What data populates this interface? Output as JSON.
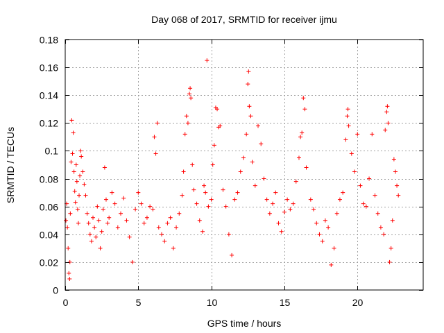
{
  "chart_data": {
    "type": "scatter",
    "title": "Day 068 of 2017, SRMTID for receiver ijmu",
    "xlabel": "GPS time / hours",
    "ylabel": "SRMTID / TECUs",
    "xlim": [
      0,
      24.5
    ],
    "ylim": [
      0,
      0.18
    ],
    "grid": true,
    "marker": "+",
    "xticks": [
      0,
      5,
      10,
      15,
      20
    ],
    "xtick_labels": [
      "0",
      "5",
      "10",
      "15",
      "20"
    ],
    "yticks": [
      0,
      0.02,
      0.04,
      0.06,
      0.08,
      0.1,
      0.12,
      0.14,
      0.16,
      0.18
    ],
    "ytick_labels": [
      "0",
      "0.02",
      "0.04",
      "0.06",
      "0.08",
      "0.1",
      "0.12",
      "0.14",
      "0.16",
      "0.18"
    ],
    "series": [
      {
        "name": "SRMTID",
        "color": "#ff0000",
        "points": [
          [
            0.05,
            0.05
          ],
          [
            0.1,
            0.062
          ],
          [
            0.15,
            0.045
          ],
          [
            0.2,
            0.03
          ],
          [
            0.25,
            0.012
          ],
          [
            0.3,
            0.008
          ],
          [
            0.32,
            0.02
          ],
          [
            0.35,
            0.055
          ],
          [
            0.4,
            0.092
          ],
          [
            0.45,
            0.122
          ],
          [
            0.5,
            0.098
          ],
          [
            0.55,
            0.113
          ],
          [
            0.6,
            0.085
          ],
          [
            0.65,
            0.071
          ],
          [
            0.7,
            0.063
          ],
          [
            0.75,
            0.09
          ],
          [
            0.8,
            0.078
          ],
          [
            0.85,
            0.058
          ],
          [
            0.9,
            0.048
          ],
          [
            0.95,
            0.068
          ],
          [
            1.0,
            0.082
          ],
          [
            1.05,
            0.1
          ],
          [
            1.1,
            0.096
          ],
          [
            1.2,
            0.085
          ],
          [
            1.3,
            0.076
          ],
          [
            1.4,
            0.068
          ],
          [
            1.5,
            0.055
          ],
          [
            1.6,
            0.048
          ],
          [
            1.7,
            0.04
          ],
          [
            1.8,
            0.035
          ],
          [
            1.9,
            0.052
          ],
          [
            2.0,
            0.045
          ],
          [
            2.1,
            0.038
          ],
          [
            2.2,
            0.06
          ],
          [
            2.3,
            0.05
          ],
          [
            2.4,
            0.03
          ],
          [
            2.5,
            0.042
          ],
          [
            2.6,
            0.058
          ],
          [
            2.7,
            0.088
          ],
          [
            2.8,
            0.065
          ],
          [
            2.9,
            0.048
          ],
          [
            3.0,
            0.052
          ],
          [
            3.2,
            0.07
          ],
          [
            3.4,
            0.062
          ],
          [
            3.6,
            0.045
          ],
          [
            3.8,
            0.055
          ],
          [
            4.0,
            0.066
          ],
          [
            4.2,
            0.05
          ],
          [
            4.4,
            0.038
          ],
          [
            4.6,
            0.02
          ],
          [
            4.8,
            0.058
          ],
          [
            5.0,
            0.07
          ],
          [
            5.2,
            0.062
          ],
          [
            5.4,
            0.048
          ],
          [
            5.6,
            0.052
          ],
          [
            5.8,
            0.06
          ],
          [
            6.0,
            0.058
          ],
          [
            6.1,
            0.11
          ],
          [
            6.2,
            0.098
          ],
          [
            6.3,
            0.12
          ],
          [
            6.4,
            0.045
          ],
          [
            6.6,
            0.04
          ],
          [
            6.8,
            0.035
          ],
          [
            7.0,
            0.048
          ],
          [
            7.2,
            0.052
          ],
          [
            7.4,
            0.03
          ],
          [
            7.6,
            0.045
          ],
          [
            7.8,
            0.055
          ],
          [
            8.0,
            0.068
          ],
          [
            8.1,
            0.085
          ],
          [
            8.2,
            0.112
          ],
          [
            8.3,
            0.125
          ],
          [
            8.4,
            0.12
          ],
          [
            8.5,
            0.141
          ],
          [
            8.55,
            0.145
          ],
          [
            8.6,
            0.138
          ],
          [
            8.7,
            0.09
          ],
          [
            8.8,
            0.072
          ],
          [
            9.0,
            0.062
          ],
          [
            9.2,
            0.05
          ],
          [
            9.4,
            0.042
          ],
          [
            9.5,
            0.075
          ],
          [
            9.6,
            0.07
          ],
          [
            9.7,
            0.165
          ],
          [
            9.8,
            0.06
          ],
          [
            10.0,
            0.065
          ],
          [
            10.1,
            0.09
          ],
          [
            10.2,
            0.104
          ],
          [
            10.3,
            0.131
          ],
          [
            10.4,
            0.13
          ],
          [
            10.5,
            0.117
          ],
          [
            10.6,
            0.118
          ],
          [
            10.8,
            0.072
          ],
          [
            11.0,
            0.06
          ],
          [
            11.2,
            0.04
          ],
          [
            11.4,
            0.025
          ],
          [
            11.6,
            0.065
          ],
          [
            11.8,
            0.07
          ],
          [
            12.0,
            0.085
          ],
          [
            12.2,
            0.095
          ],
          [
            12.4,
            0.112
          ],
          [
            12.5,
            0.148
          ],
          [
            12.55,
            0.157
          ],
          [
            12.6,
            0.132
          ],
          [
            12.7,
            0.125
          ],
          [
            12.8,
            0.092
          ],
          [
            13.0,
            0.075
          ],
          [
            13.2,
            0.118
          ],
          [
            13.4,
            0.105
          ],
          [
            13.6,
            0.08
          ],
          [
            13.8,
            0.065
          ],
          [
            14.0,
            0.055
          ],
          [
            14.2,
            0.062
          ],
          [
            14.4,
            0.07
          ],
          [
            14.6,
            0.048
          ],
          [
            14.8,
            0.042
          ],
          [
            15.0,
            0.056
          ],
          [
            15.2,
            0.065
          ],
          [
            15.4,
            0.058
          ],
          [
            15.6,
            0.062
          ],
          [
            15.8,
            0.078
          ],
          [
            16.0,
            0.095
          ],
          [
            16.1,
            0.11
          ],
          [
            16.2,
            0.113
          ],
          [
            16.3,
            0.138
          ],
          [
            16.4,
            0.13
          ],
          [
            16.5,
            0.088
          ],
          [
            16.8,
            0.065
          ],
          [
            17.0,
            0.058
          ],
          [
            17.2,
            0.048
          ],
          [
            17.4,
            0.04
          ],
          [
            17.6,
            0.035
          ],
          [
            17.8,
            0.05
          ],
          [
            18.0,
            0.045
          ],
          [
            18.2,
            0.018
          ],
          [
            18.4,
            0.03
          ],
          [
            18.6,
            0.055
          ],
          [
            18.8,
            0.065
          ],
          [
            19.0,
            0.07
          ],
          [
            19.2,
            0.108
          ],
          [
            19.3,
            0.125
          ],
          [
            19.35,
            0.13
          ],
          [
            19.4,
            0.118
          ],
          [
            19.6,
            0.098
          ],
          [
            19.8,
            0.085
          ],
          [
            20.0,
            0.112
          ],
          [
            20.2,
            0.075
          ],
          [
            20.4,
            0.062
          ],
          [
            20.6,
            0.06
          ],
          [
            20.8,
            0.08
          ],
          [
            21.0,
            0.112
          ],
          [
            21.2,
            0.068
          ],
          [
            21.4,
            0.055
          ],
          [
            21.6,
            0.045
          ],
          [
            21.8,
            0.04
          ],
          [
            21.9,
            0.115
          ],
          [
            22.0,
            0.128
          ],
          [
            22.05,
            0.132
          ],
          [
            22.1,
            0.12
          ],
          [
            22.2,
            0.02
          ],
          [
            22.3,
            0.03
          ],
          [
            22.4,
            0.05
          ],
          [
            22.5,
            0.094
          ],
          [
            22.6,
            0.085
          ],
          [
            22.7,
            0.075
          ],
          [
            22.8,
            0.068
          ]
        ]
      }
    ]
  }
}
